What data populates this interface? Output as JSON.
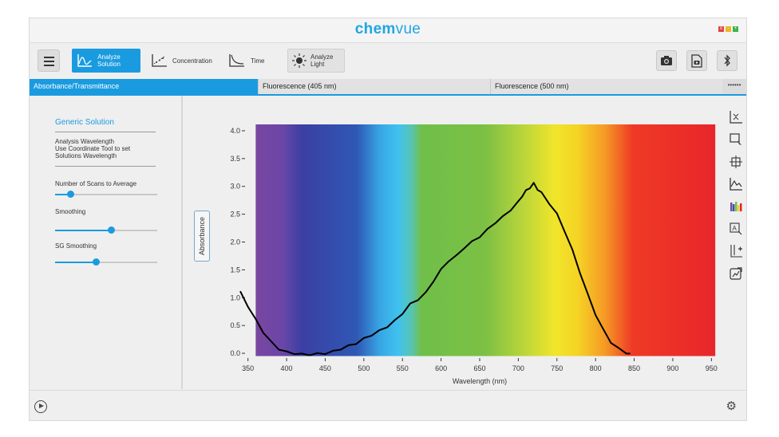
{
  "app": {
    "brand_bold": "chem",
    "brand_light": "vue"
  },
  "toolbar": {
    "analyze_solution": "Analyze\nSolution",
    "concentration": "Concentration",
    "time": "Time",
    "analyze_light": "Analyze\nLight"
  },
  "tabs": [
    {
      "label": "Absorbance/Transmittance",
      "active": true
    },
    {
      "label": "Fluorescence (405 nm)",
      "active": false
    },
    {
      "label": "Fluorescence (500 nm)",
      "active": false
    }
  ],
  "tab_more": "••••••",
  "sidebar": {
    "title": "Generic Solution",
    "wavelength_line1": "Analysis Wavelength",
    "wavelength_line2": "Use Coordinate Tool to  set",
    "wavelength_line3": "Solutions Wavelength",
    "scans_label": "Number of Scans to Average",
    "scans_value": 0.15,
    "smoothing_label": "Smoothing",
    "smoothing_value": 0.55,
    "sg_label": "SG Smoothing",
    "sg_value": 0.4
  },
  "chart_data": {
    "type": "line",
    "xlabel": "Wavelength (nm)",
    "ylabel": "Absorbance",
    "xlim": [
      340,
      960
    ],
    "ylim": [
      -0.1,
      4.2
    ],
    "xticks": [
      "350",
      "400",
      "450",
      "500",
      "550",
      "600",
      "650",
      "700",
      "750",
      "800",
      "850",
      "900",
      "950"
    ],
    "xtick_values": [
      350,
      400,
      450,
      500,
      550,
      600,
      650,
      700,
      750,
      800,
      850,
      900,
      950
    ],
    "yticks": [
      "0.0",
      "0.5",
      "1.0",
      "1.5",
      "2.0",
      "2.5",
      "3.0",
      "3.5",
      "4.0"
    ],
    "ytick_values": [
      0.0,
      0.5,
      1.0,
      1.5,
      2.0,
      2.5,
      3.0,
      3.5,
      4.0
    ],
    "spectrum_range": [
      360,
      955
    ],
    "series": [
      {
        "name": "Absorbance",
        "x": [
          340,
          350,
          360,
          370,
          380,
          390,
          400,
          410,
          420,
          430,
          440,
          450,
          460,
          470,
          480,
          490,
          500,
          510,
          520,
          530,
          540,
          550,
          560,
          570,
          580,
          590,
          600,
          610,
          620,
          630,
          640,
          650,
          660,
          670,
          680,
          690,
          700,
          705,
          710,
          715,
          720,
          725,
          730,
          740,
          750,
          760,
          770,
          780,
          790,
          800,
          810,
          820,
          830,
          840,
          845
        ],
        "y": [
          1.1,
          0.85,
          0.6,
          0.38,
          0.2,
          0.08,
          0.02,
          0.0,
          -0.02,
          -0.02,
          -0.01,
          0.0,
          0.03,
          0.08,
          0.13,
          0.18,
          0.26,
          0.33,
          0.4,
          0.48,
          0.58,
          0.72,
          0.88,
          0.97,
          1.08,
          1.3,
          1.5,
          1.67,
          1.75,
          1.9,
          2.0,
          2.1,
          2.22,
          2.35,
          2.45,
          2.58,
          2.72,
          2.83,
          2.92,
          2.98,
          3.05,
          2.95,
          2.88,
          2.7,
          2.5,
          2.2,
          1.85,
          1.45,
          1.05,
          0.7,
          0.42,
          0.2,
          0.08,
          0.01,
          -0.02
        ]
      }
    ]
  }
}
